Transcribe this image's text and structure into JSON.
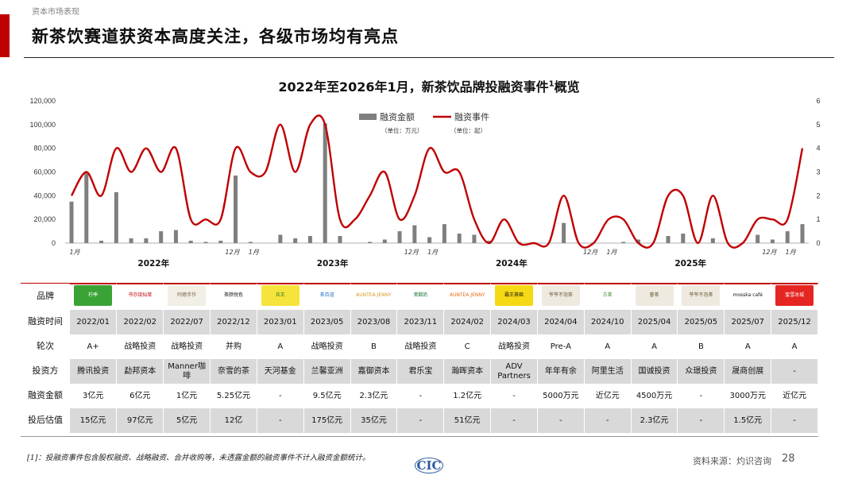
{
  "header": {
    "section_label": "资本市场表现",
    "title": "新茶饮赛道获资本高度关注，各级市场均有亮点"
  },
  "chart_title_main": "2022年至2026年1月，新茶饮品牌投融资事件",
  "chart_title_sup": "1",
  "chart_title_tail": "概览",
  "chart_data": {
    "type": "bar+line",
    "title": "2022年至2026年1月，新茶饮品牌投融资事件1概览",
    "legend": [
      {
        "name": "融资金额",
        "unit": "（单位：万元）",
        "color": "#7f7f7f"
      },
      {
        "name": "融资事件",
        "unit": "（单位：起）",
        "color": "#c00000"
      }
    ],
    "left_axis": {
      "min": 0,
      "max": 120000,
      "ticks": [
        "0",
        "20,000",
        "40,000",
        "60,000",
        "80,000",
        "100,000",
        "120,000"
      ]
    },
    "right_axis": {
      "min": 0,
      "max": 6,
      "ticks": [
        "0",
        "1",
        "2",
        "3",
        "4",
        "5",
        "6"
      ]
    },
    "month_labels": [
      {
        "i": 0,
        "text": "1月"
      },
      {
        "i": 11,
        "text": "12月"
      },
      {
        "i": 12,
        "text": "1月"
      },
      {
        "i": 23,
        "text": "12月"
      },
      {
        "i": 24,
        "text": "1月"
      },
      {
        "i": 35,
        "text": "12月"
      },
      {
        "i": 36,
        "text": "1月"
      },
      {
        "i": 47,
        "text": "12月"
      },
      {
        "i": 48,
        "text": "1月"
      }
    ],
    "year_labels": [
      {
        "center": 5.5,
        "text": "2022年"
      },
      {
        "center": 17.5,
        "text": "2023年"
      },
      {
        "center": 29.5,
        "text": "2024年"
      },
      {
        "center": 41.5,
        "text": "2025年"
      }
    ],
    "amounts": [
      35000,
      60000,
      2000,
      43000,
      4000,
      4000,
      10000,
      11000,
      2000,
      1000,
      2000,
      57000,
      1000,
      0,
      7000,
      4000,
      6000,
      101000,
      6000,
      0,
      1000,
      3000,
      10000,
      15000,
      5000,
      16000,
      8000,
      7000,
      2000,
      0,
      1000,
      0,
      0,
      17000,
      0,
      0,
      0,
      1000,
      3000,
      0,
      6000,
      8000,
      0,
      4000,
      0,
      0,
      7000,
      3000,
      10000,
      16000
    ],
    "events": [
      2,
      3,
      2,
      4,
      3,
      4,
      3,
      4,
      1,
      1,
      1,
      4,
      3,
      3,
      5,
      3,
      5,
      5,
      1,
      1,
      2,
      3,
      1,
      2,
      4,
      3,
      3,
      1,
      0,
      1,
      0,
      0,
      0,
      2,
      0,
      0,
      1,
      1,
      0,
      0,
      2,
      2,
      0,
      2,
      0,
      0,
      1,
      1,
      1,
      4
    ]
  },
  "table": {
    "row_labels": [
      "品牌",
      "融资时间",
      "轮次",
      "投资方",
      "融资金额",
      "投后估值"
    ],
    "brands": [
      {
        "logo": "柠季",
        "color": "#3aa335",
        "text_color": "#ffffff"
      },
      {
        "logo": "书亦烧仙草",
        "color": "#ffffff",
        "text_color": "#c00000"
      },
      {
        "logo": "阿嬷手作",
        "color": "#f2efe6",
        "text_color": "#7a6a4a"
      },
      {
        "logo": "茶颜悦色",
        "color": "#ffffff",
        "text_color": "#111111"
      },
      {
        "logo": "兵王",
        "color": "#f5e43b",
        "text_color": "#1d6b2a"
      },
      {
        "logo": "茶百道",
        "color": "#ffffff",
        "text_color": "#2a73c8"
      },
      {
        "logo": "AUNTEA JENNY",
        "color": "#ffffff",
        "text_color": "#d69a1e"
      },
      {
        "logo": "茉酸奶",
        "color": "#ffffff",
        "text_color": "#1d7a3a"
      },
      {
        "logo": "AUNTEA JENNY",
        "color": "#ffffff",
        "text_color": "#e86a12"
      },
      {
        "logo": "霸王茶姬",
        "color": "#f5d915",
        "text_color": "#111111"
      },
      {
        "logo": "爷爷不泡茶",
        "color": "#efeadf",
        "text_color": "#6a5a3a"
      },
      {
        "logo": "古茗",
        "color": "#ffffff",
        "text_color": "#3a8a2a"
      },
      {
        "logo": "眷茶",
        "color": "#efeadf",
        "text_color": "#6a5a3a"
      },
      {
        "logo": "爷爷不泡茶",
        "color": "#efeadf",
        "text_color": "#6a5a3a"
      },
      {
        "logo": "mosska café",
        "color": "#ffffff",
        "text_color": "#111111"
      },
      {
        "logo": "蜜雪冰城",
        "color": "#e52521",
        "text_color": "#ffffff"
      }
    ],
    "times": [
      "2022/01",
      "2022/02",
      "2022/07",
      "2022/12",
      "2023/01",
      "2023/05",
      "2023/08",
      "2023/11",
      "2024/02",
      "2024/03",
      "2024/04",
      "2024/10",
      "2025/04",
      "2025/05",
      "2025/07",
      "2025/12"
    ],
    "rounds": [
      "A+",
      "战略投资",
      "战略投资",
      "并购",
      "A",
      "战略投资",
      "B",
      "战略投资",
      "C",
      "战略投资",
      "Pre-A",
      "A",
      "A",
      "B",
      "A",
      "A"
    ],
    "investors": [
      "腾讯投资",
      "勐邦资本",
      "Manner咖啡",
      "奈雪的茶",
      "天河基金",
      "兰馨亚洲",
      "嘉御资本",
      "君乐宝",
      "瀚晖资本",
      "ADV Partners",
      "年年有余",
      "阿里生活",
      "国诚投资",
      "众璟投资",
      "晟商创展",
      "-"
    ],
    "amounts": [
      "3亿元",
      "6亿元",
      "1亿元",
      "5.25亿元",
      "-",
      "9.5亿元",
      "2.3亿元",
      "-",
      "1.2亿元",
      "-",
      "5000万元",
      "近亿元",
      "4500万元",
      "-",
      "3000万元",
      "近亿元"
    ],
    "valuations": [
      "15亿元",
      "97亿元",
      "5亿元",
      "12亿",
      "-",
      "175亿元",
      "35亿元",
      "-",
      "51亿元",
      "-",
      "-",
      "-",
      "2.3亿元",
      "-",
      "1.5亿元",
      "-"
    ]
  },
  "footer": {
    "footnote": "[1]：投融资事件包含股权融资、战略融资、合并收购等，未透露金额的融资事件不计入融资金额统计。",
    "logo_text": "CIC",
    "source": "资料来源：灼识咨询",
    "page": "28"
  },
  "colors": {
    "accent_red": "#c00000",
    "bar_gray": "#7f7f7f",
    "shade_gray": "#d9d9d9"
  }
}
